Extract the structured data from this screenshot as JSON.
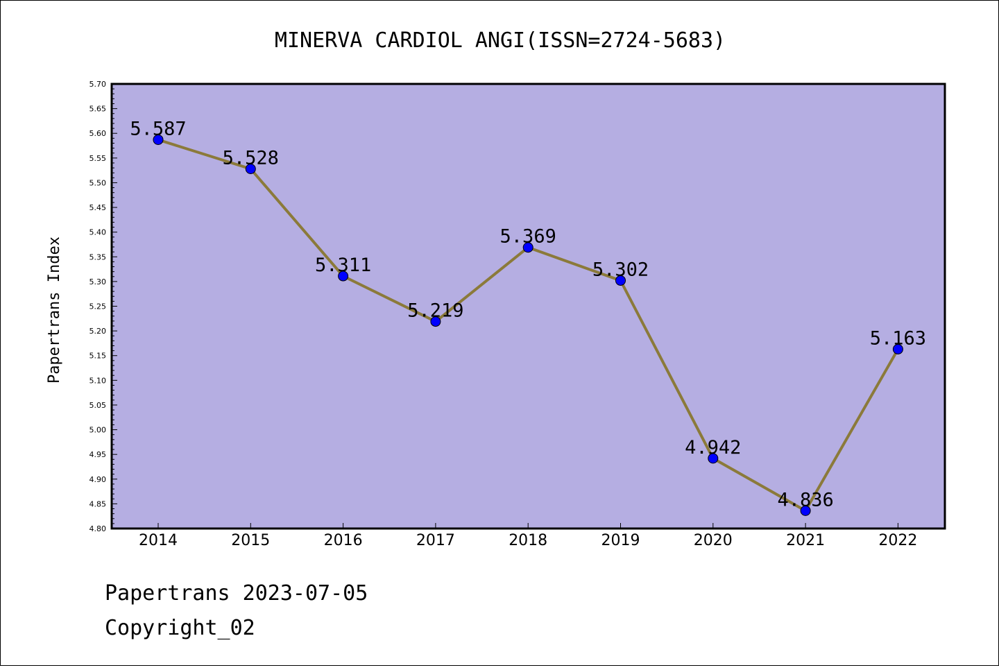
{
  "chart_data": {
    "type": "line",
    "title": "MINERVA CARDIOL ANGI(ISSN=2724-5683)",
    "xlabel": "",
    "ylabel": "Papertrans Index",
    "categories": [
      "2014",
      "2015",
      "2016",
      "2017",
      "2018",
      "2019",
      "2020",
      "2021",
      "2022"
    ],
    "series": [
      {
        "values": [
          5.587,
          5.528,
          5.311,
          5.219,
          5.369,
          5.302,
          4.942,
          4.836,
          5.163
        ],
        "data_labels": [
          "5.587",
          "5.528",
          "5.311",
          "5.219",
          "5.369",
          "5.302",
          "4.942",
          "4.836",
          "5.163"
        ]
      }
    ],
    "ylim": [
      4.8,
      5.7
    ],
    "yticks": [
      "4.80",
      "4.85",
      "4.90",
      "4.95",
      "5.00",
      "5.05",
      "5.10",
      "5.15",
      "5.20",
      "5.25",
      "5.30",
      "5.35",
      "5.40",
      "5.45",
      "5.50",
      "5.55",
      "5.60",
      "5.65",
      "5.70"
    ],
    "grid": false,
    "legend": "none",
    "colors": {
      "plot_background": "#b5aee2",
      "line": "#8b7a3a",
      "marker": "#0000ff"
    }
  },
  "footer": {
    "date_line": "Papertrans 2023-07-05",
    "copyright_line": "Copyright_02"
  }
}
